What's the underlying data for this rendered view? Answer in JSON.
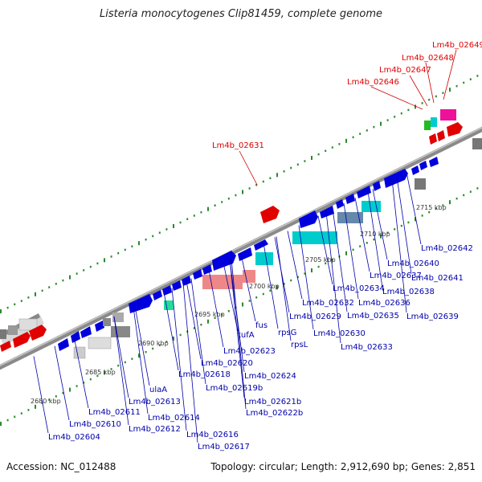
{
  "title": "Listeria monocytogenes Clip81459, complete genome",
  "accession_label": "Accession: NC_012488",
  "topology_label": "Topology: circular; Length: 2,912,690 bp; Genes: 2,851",
  "colors": {
    "highlight": "#e00000",
    "gene_label": "#0000aa",
    "backbone": "#8a8a8a",
    "tick_dot": "#2a8a2a"
  },
  "scale_labels": [
    "2680 kbp",
    "2685 kbp",
    "2690 kbp",
    "2695 kbp",
    "2700 kbp",
    "2705 kbp",
    "2710 kbp",
    "2715 kbp"
  ],
  "highlight_labels": [
    "Lm4b_02631",
    "Lm4b_02646",
    "Lm4b_02647",
    "Lm4b_02648",
    "Lm4b_02649"
  ],
  "gene_labels": [
    "Lm4b_02604",
    "Lm4b_02610",
    "Lm4b_02611",
    "Lm4b_02612",
    "Lm4b_02613",
    "ulaA",
    "Lm4b_02614",
    "Lm4b_02616",
    "Lm4b_02617",
    "Lm4b_02618",
    "Lm4b_02619b",
    "Lm4b_02620",
    "Lm4b_02621b",
    "Lm4b_02622b",
    "Lm4b_02623",
    "Lm4b_02624",
    "tufA",
    "fus",
    "rpsG",
    "rpsL",
    "Lm4b_02629",
    "Lm4b_02630",
    "Lm4b_02632",
    "Lm4b_02633",
    "Lm4b_02634",
    "Lm4b_02635",
    "Lm4b_02636",
    "Lm4b_02637",
    "Lm4b_02638",
    "Lm4b_02639",
    "Lm4b_02640",
    "Lm4b_02641",
    "Lm4b_02642"
  ]
}
